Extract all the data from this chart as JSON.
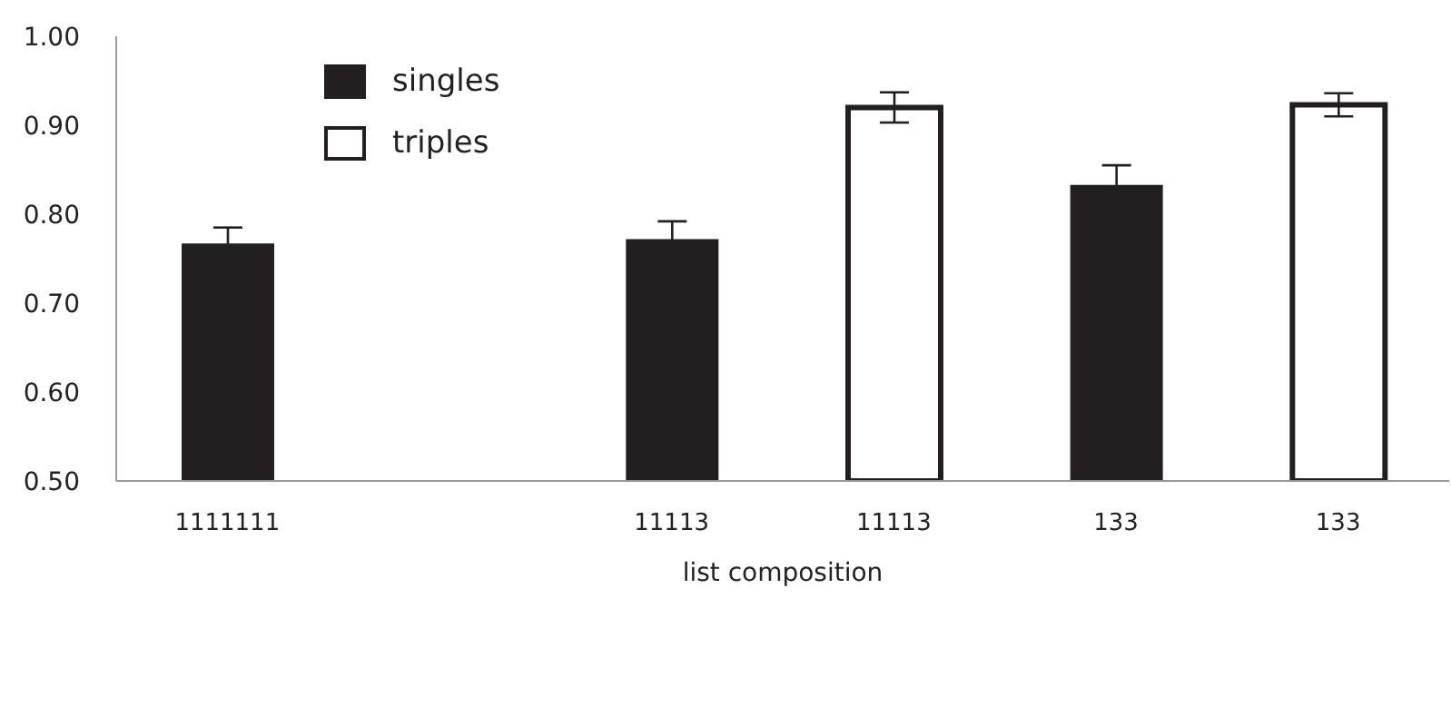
{
  "chart_data": {
    "type": "bar",
    "xlabel": "list composition",
    "categories": [
      "1111111",
      null,
      "11113",
      "11113",
      "133",
      "133"
    ],
    "series": [
      {
        "name": "singles",
        "color": "#231f20",
        "values": [
          0.767,
          null,
          0.772,
          null,
          0.833,
          null
        ],
        "errors": [
          0.018,
          null,
          0.02,
          null,
          0.022,
          null
        ]
      },
      {
        "name": "triples",
        "color": "#ffffff",
        "values": [
          null,
          null,
          null,
          0.92,
          null,
          0.923
        ],
        "errors": [
          null,
          null,
          null,
          0.017,
          null,
          0.013
        ]
      }
    ],
    "ylim": [
      0.5,
      1.0
    ],
    "yticks": [
      {
        "value": 0.5,
        "label": "0.50"
      },
      {
        "value": 0.6,
        "label": "0.60"
      },
      {
        "value": 0.7,
        "label": "0.70"
      },
      {
        "value": 0.8,
        "label": "0.80"
      },
      {
        "value": 0.9,
        "label": "0.90"
      },
      {
        "value": 1.0,
        "label": "1.00"
      }
    ],
    "grid": false,
    "legend": "top left"
  }
}
